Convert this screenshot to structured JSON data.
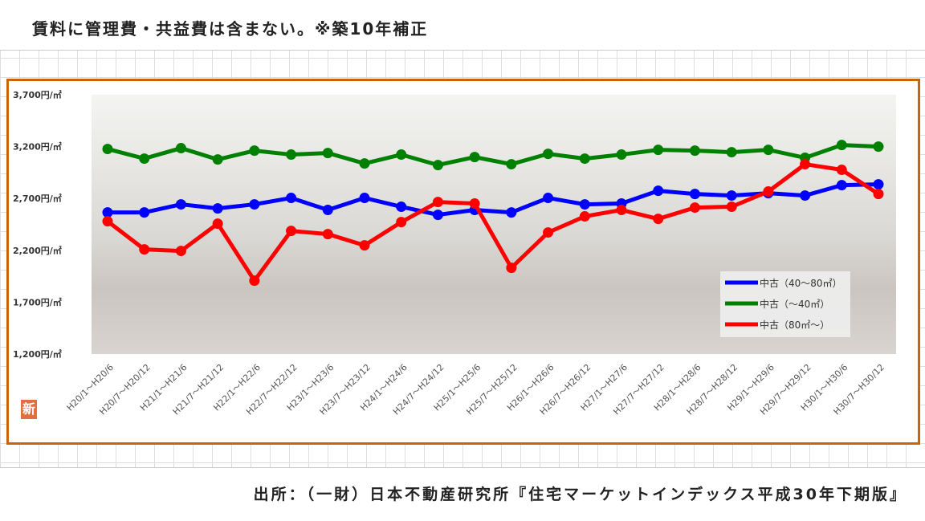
{
  "header": {
    "note": "賃料に管理費・共益費は含まない。※築10年補正"
  },
  "footer": {
    "source": "出所：（一財）日本不動産研究所『住宅マーケットインデックス平成30年下期版』"
  },
  "logo": {
    "text": "新"
  },
  "chart_data": {
    "type": "line",
    "title": "",
    "ylim": [
      1200,
      3700
    ],
    "yticks": [
      1200,
      1700,
      2200,
      2700,
      3200,
      3700
    ],
    "ytick_labels": [
      "1,200円/㎡",
      "1,700円/㎡",
      "2,200円/㎡",
      "2,700円/㎡",
      "3,200円/㎡",
      "3,700円/㎡"
    ],
    "legend_position": "bottom-right",
    "categories": [
      "H20/1～H20/6",
      "H20/7～H20/12",
      "H21/1～H21/6",
      "H21/7～H21/12",
      "H22/1～H22/6",
      "H22/7～H22/12",
      "H23/1～H23/6",
      "H23/7～H23/12",
      "H24/1～H24/6",
      "H24/7～H24/12",
      "H25/1～H25/6",
      "H25/7～H25/12",
      "H26/1～H26/6",
      "H26/7～H26/12",
      "H27/1～H27/6",
      "H27/7～H27/12",
      "H28/1～H28/6",
      "H28/7～H28/12",
      "H29/1～H29/6",
      "H29/7～H29/12",
      "H30/1～H30/6",
      "H30/7～H30/12"
    ],
    "series": [
      {
        "name": "中古（40～80㎡）",
        "color": "#0000ff",
        "values": [
          2565,
          2565,
          2643,
          2604,
          2643,
          2705,
          2589,
          2705,
          2620,
          2542,
          2589,
          2565,
          2705,
          2643,
          2651,
          2774,
          2743,
          2728,
          2751,
          2728,
          2828,
          2836
        ]
      },
      {
        "name": "中古（～40㎡）",
        "color": "#008000",
        "values": [
          3177,
          3084,
          3185,
          3076,
          3161,
          3123,
          3138,
          3037,
          3123,
          3022,
          3099,
          3030,
          3130,
          3084,
          3123,
          3169,
          3161,
          3146,
          3169,
          3092,
          3215,
          3200
        ]
      },
      {
        "name": "中古（80㎡～）",
        "color": "#ff0000",
        "values": [
          2480,
          2209,
          2194,
          2457,
          1907,
          2387,
          2356,
          2248,
          2472,
          2666,
          2651,
          2031,
          2372,
          2527,
          2589,
          2503,
          2612,
          2620,
          2767,
          3030,
          2976,
          2743
        ]
      }
    ]
  }
}
